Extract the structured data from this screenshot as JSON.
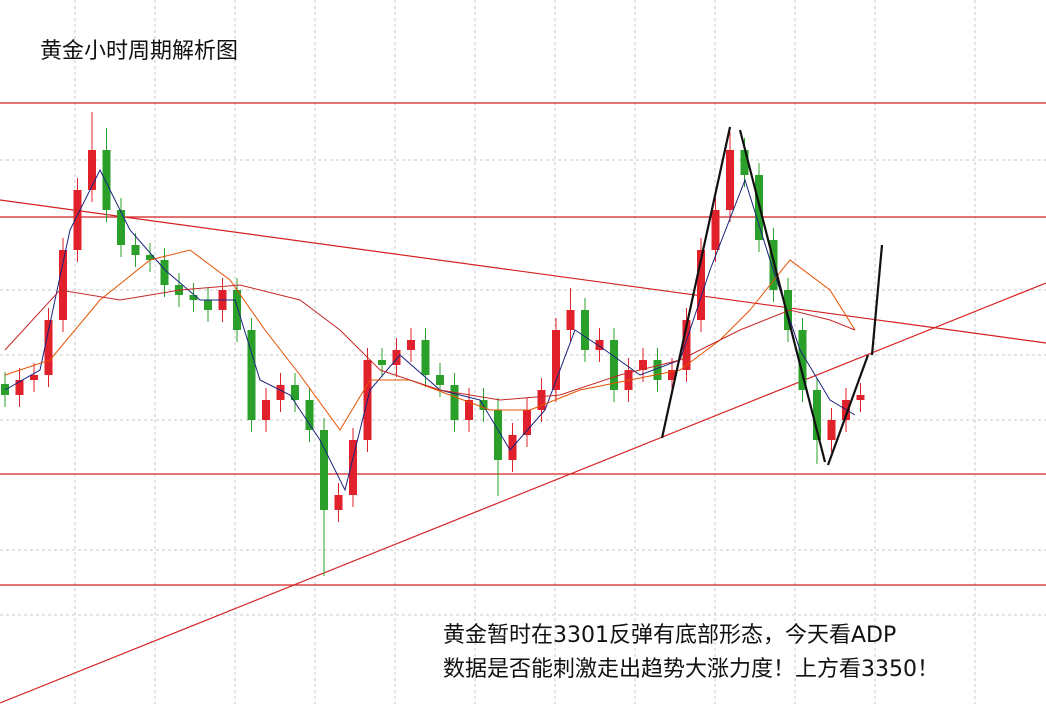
{
  "chart_data": {
    "type": "candlestick",
    "title": "黄金小时周期解析图",
    "annotations": [
      "黄金暂时在3301反弹有底部形态，今天看ADP",
      "数据是否能刺激走出趋势大涨力度！上方看3350！"
    ],
    "ylim": [
      3280,
      3456
    ],
    "up_color": "#e0202a",
    "down_color": "#2aa02a",
    "open": [
      3360,
      3357.25,
      3361,
      3362.25,
      3376,
      3393.5,
      3408.5,
      3418.5,
      3403.5,
      3394.75,
      3392.25,
      3391,
      3384.75,
      3382.25,
      3381,
      3378.5,
      3383.5,
      3373.5,
      3351,
      3356,
      3359.75,
      3356,
      3348.5,
      3328.5,
      3332.25,
      3346,
      3366,
      3364.75,
      3368.5,
      3371,
      3362.25,
      3359.75,
      3351,
      3356,
      3353.5,
      3341,
      3347.25,
      3353.5,
      3358.5,
      3373.5,
      3378.5,
      3368.5,
      3371,
      3358.5,
      3363.5,
      3366,
      3361,
      3363.5,
      3376,
      3393.5,
      3403.5,
      3418.5,
      3412.25,
      3396,
      3383.5,
      3373.5,
      3358.5,
      3346,
      3351,
      3356
    ],
    "high": [
      3363,
      3364,
      3365.25,
      3379,
      3396.5,
      3411.5,
      3428,
      3424,
      3406.5,
      3397.75,
      3395.25,
      3394,
      3387.75,
      3385.25,
      3384,
      3386.5,
      3386.5,
      3376.5,
      3359,
      3362.75,
      3362.75,
      3359,
      3351.5,
      3335.25,
      3349,
      3369,
      3369,
      3371.5,
      3374,
      3374,
      3365.25,
      3362.75,
      3359,
      3359,
      3356.5,
      3350.25,
      3356.5,
      3361.5,
      3376.5,
      3384,
      3381.5,
      3374,
      3374,
      3366.5,
      3369,
      3369,
      3366.5,
      3379,
      3396.5,
      3406.5,
      3423,
      3421.5,
      3415.25,
      3399,
      3386.5,
      3376.5,
      3361.5,
      3354,
      3359,
      3360.25
    ],
    "low": [
      3354.25,
      3354.25,
      3358,
      3359.25,
      3373,
      3390.5,
      3405.5,
      3400.5,
      3391.75,
      3389.25,
      3388,
      3381.75,
      3379.25,
      3378,
      3375.5,
      3375.5,
      3370.5,
      3348,
      3348,
      3353,
      3353,
      3345.5,
      3312,
      3325.5,
      3329.25,
      3343,
      3361.75,
      3361.75,
      3365.5,
      3359.25,
      3356.75,
      3348,
      3348,
      3350.5,
      3332,
      3338,
      3344.25,
      3350.5,
      3355.5,
      3370.5,
      3365.5,
      3365.5,
      3355.5,
      3355.5,
      3360.5,
      3358,
      3358,
      3360.5,
      3373,
      3390.5,
      3400.5,
      3409.25,
      3393,
      3380.5,
      3370.5,
      3355.5,
      3340,
      3343,
      3348,
      3353
    ],
    "close": [
      3357.25,
      3361,
      3362.25,
      3376,
      3393.5,
      3408.5,
      3418.5,
      3403.5,
      3394.75,
      3392.25,
      3391,
      3384.75,
      3382.25,
      3381,
      3378.5,
      3383.5,
      3373.5,
      3351,
      3356,
      3359.75,
      3356,
      3348.5,
      3328.5,
      3332.25,
      3346,
      3366,
      3364.75,
      3368.5,
      3371,
      3362.25,
      3359.75,
      3351,
      3356,
      3353.5,
      3341,
      3347.25,
      3353.5,
      3358.5,
      3373.5,
      3378.5,
      3368.5,
      3371,
      3358.5,
      3363.5,
      3366,
      3361,
      3363.5,
      3376,
      3393.5,
      3403.5,
      3418.5,
      3412.25,
      3396,
      3383.5,
      3373.5,
      3358.5,
      3346,
      3351,
      3356,
      3357.25
    ]
  }
}
